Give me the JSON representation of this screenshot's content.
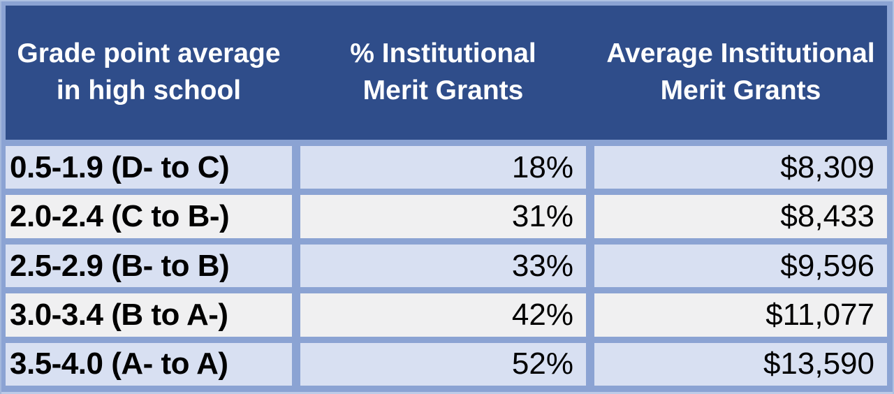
{
  "table": {
    "headers": [
      {
        "line1": "Grade point average",
        "line2": "in high school"
      },
      {
        "line1": "% Institutional",
        "line2": "Merit Grants"
      },
      {
        "line1": "Average Institutional",
        "line2": "Merit Grants"
      }
    ],
    "rows": [
      {
        "gpa": "0.5-1.9 (D- to C)",
        "percent": "18%",
        "amount": "$8,309"
      },
      {
        "gpa": "2.0-2.4 (C to B-)",
        "percent": "31%",
        "amount": "$8,433"
      },
      {
        "gpa": "2.5-2.9 (B- to B)",
        "percent": "33%",
        "amount": "$9,596"
      },
      {
        "gpa": "3.0-3.4 (B to A-)",
        "percent": "42%",
        "amount": "$11,077"
      },
      {
        "gpa": "3.5-4.0 (A- to A)",
        "percent": "52%",
        "amount": "$13,590"
      }
    ]
  },
  "colors": {
    "header_bg": "#2F4D8A",
    "header_text": "#FFFFFF",
    "gridline_border": "#8BA3D3",
    "row_light_blue": "#D8E0F2",
    "row_light_gray": "#F0F0F1",
    "body_text": "#000000"
  },
  "chart_data": {
    "type": "table",
    "title": "",
    "columns": [
      "Grade point average in high school",
      "% Institutional Merit Grants",
      "Average Institutional Merit Grants"
    ],
    "rows": [
      [
        "0.5-1.9 (D- to C)",
        "18%",
        "$8,309"
      ],
      [
        "2.0-2.4 (C to B-)",
        "31%",
        "$8,433"
      ],
      [
        "2.5-2.9 (B- to B)",
        "33%",
        "$9,596"
      ],
      [
        "3.0-3.4 (B to A-)",
        "42%",
        "$11,077"
      ],
      [
        "3.5-4.0 (A- to A)",
        "52%",
        "$13,590"
      ]
    ],
    "percent_values": [
      18,
      31,
      33,
      42,
      52
    ],
    "amount_values": [
      8309,
      8433,
      9596,
      11077,
      13590
    ]
  }
}
